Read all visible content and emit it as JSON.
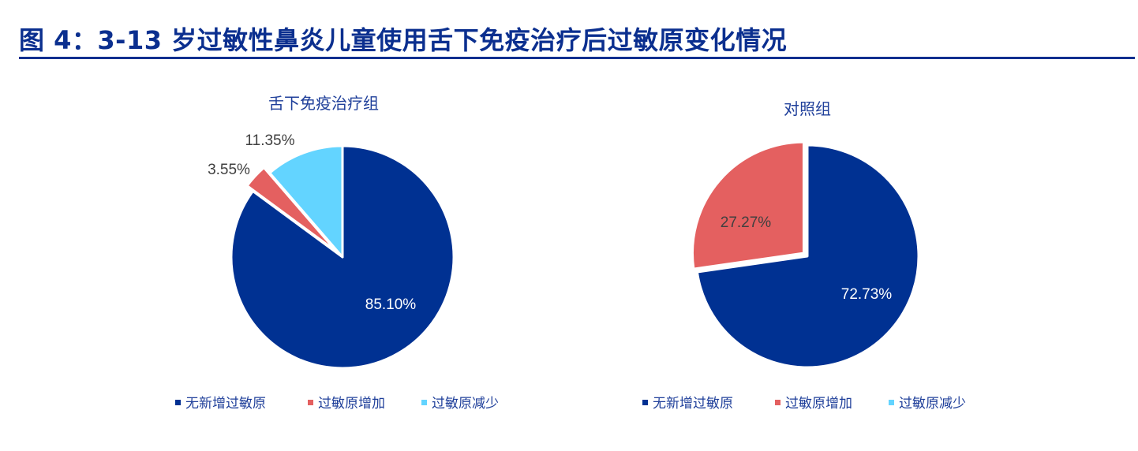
{
  "figure_title": "图 4：3-13 岁过敏性鼻炎儿童使用舌下免疫治疗后过敏原变化情况",
  "colors": {
    "title": "#0b2f8f",
    "series": [
      "#003192",
      "#e46060",
      "#63d4ff"
    ]
  },
  "chart_data": [
    {
      "type": "pie",
      "title": "舌下免疫治疗组",
      "categories": [
        "无新增过敏原",
        "过敏原增加",
        "过敏原减少"
      ],
      "values": [
        85.1,
        3.55,
        11.35
      ],
      "labels": [
        "85.10%",
        "3.55%",
        "11.35%"
      ],
      "legend_position": "bottom"
    },
    {
      "type": "pie",
      "title": "对照组",
      "categories": [
        "无新增过敏原",
        "过敏原增加",
        "过敏原减少"
      ],
      "values": [
        72.73,
        27.27,
        0
      ],
      "labels": [
        "72.73%",
        "27.27%",
        ""
      ],
      "legend_position": "bottom"
    }
  ]
}
